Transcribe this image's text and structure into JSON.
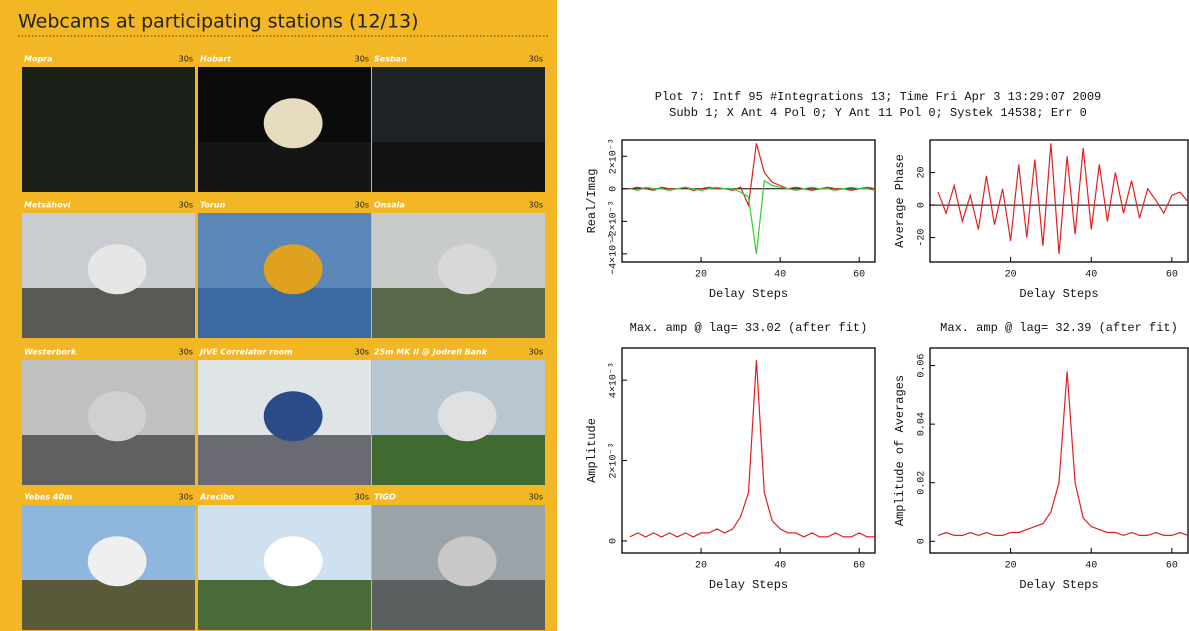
{
  "webcams": {
    "title": "Webcams at participating stations (12/13)",
    "cams": [
      {
        "name": "Mopra",
        "interval": "30s"
      },
      {
        "name": "Hobart",
        "interval": "30s"
      },
      {
        "name": "Sesban",
        "interval": "30s"
      },
      {
        "name": "Metsähovi",
        "interval": "30s"
      },
      {
        "name": "Torun",
        "interval": "30s"
      },
      {
        "name": "Onsala",
        "interval": "30s"
      },
      {
        "name": "Westerbork",
        "interval": "30s"
      },
      {
        "name": "JIVE Correlator room",
        "interval": "30s"
      },
      {
        "name": "25m MK II @ Jodrell Bank",
        "interval": "30s"
      },
      {
        "name": "Yebes 40m",
        "interval": "30s"
      },
      {
        "name": "Arecibo",
        "interval": "30s"
      },
      {
        "name": "TIGO",
        "interval": "30s"
      }
    ]
  },
  "plot": {
    "title": [
      "Plot 7: Intf 95 #Integrations 13; Time Fri Apr  3 13:29:07 2009",
      "Subb 1; X Ant 4 Pol 0; Y Ant 11 Pol 0; Systek 14538; Err 0"
    ],
    "panels": [
      {
        "ylabel": "Real/Imag",
        "xlabel": "Delay Steps",
        "xlim": [
          0,
          64
        ],
        "xticks": [
          20,
          40,
          60
        ],
        "ylim": [
          -0.0045,
          0.003
        ],
        "yticks": [
          {
            "value": 0.002,
            "label": "2×10⁻³"
          },
          0,
          {
            "value": -0.002,
            "label": "−2×10⁻³"
          },
          {
            "value": -0.004,
            "label": "−4×10⁻³"
          }
        ],
        "x": [
          2,
          4,
          6,
          8,
          10,
          12,
          14,
          16,
          18,
          20,
          22,
          24,
          26,
          28,
          30,
          32,
          34,
          36,
          38,
          40,
          42,
          44,
          46,
          48,
          50,
          52,
          54,
          56,
          58,
          60,
          62,
          64
        ],
        "series": [
          {
            "color": "#e02020",
            "values": [
              0,
              0.0001,
              0,
              -0.0001,
              0.0001,
              0,
              0,
              0.0001,
              -0.0001,
              0,
              0.0001,
              0,
              0,
              -0.0001,
              0.0001,
              -0.001,
              0.0028,
              0.001,
              0.0004,
              0.0002,
              0,
              0.0001,
              0,
              -0.0001,
              0,
              0.0001,
              0,
              0,
              -0.0001,
              0,
              0.0001,
              0
            ]
          },
          {
            "color": "#30d030",
            "values": [
              0,
              -0.0001,
              0.0001,
              0,
              0,
              -0.0001,
              0,
              0.0001,
              0,
              -0.0001,
              0,
              0.0001,
              0,
              0,
              -0.0002,
              -0.0005,
              -0.004,
              0.0005,
              0.0002,
              0.0001,
              0,
              -0.0001,
              0,
              0.0001,
              0,
              0,
              -0.0001,
              0,
              0.0001,
              0,
              0,
              -0.0001
            ]
          }
        ]
      },
      {
        "ylabel": "Average Phase",
        "xlabel": "Delay Steps",
        "xlim": [
          0,
          64
        ],
        "xticks": [
          20,
          40,
          60
        ],
        "ylim": [
          -35,
          40
        ],
        "yticks": [
          20,
          0,
          -20
        ],
        "x": [
          2,
          4,
          6,
          8,
          10,
          12,
          14,
          16,
          18,
          20,
          22,
          24,
          26,
          28,
          30,
          32,
          34,
          36,
          38,
          40,
          42,
          44,
          46,
          48,
          50,
          52,
          54,
          56,
          58,
          60,
          62,
          64
        ],
        "series": [
          {
            "color": "#e02020",
            "values": [
              8,
              -5,
              12,
              -10,
              6,
              -15,
              18,
              -12,
              10,
              -22,
              25,
              -20,
              28,
              -25,
              38,
              -30,
              30,
              -18,
              35,
              -15,
              25,
              -10,
              20,
              -5,
              15,
              -8,
              10,
              3,
              -5,
              6,
              8,
              2
            ]
          }
        ]
      },
      {
        "title": "Max. amp @ lag= 33.02 (after fit)",
        "ylabel": "Amplitude",
        "xlabel": "Delay Steps",
        "xlim": [
          0,
          64
        ],
        "xticks": [
          20,
          40,
          60
        ],
        "ylim": [
          -0.0003,
          0.0048
        ],
        "yticks": [
          0,
          {
            "value": 0.002,
            "label": "2×10⁻³"
          },
          {
            "value": 0.004,
            "label": "4×10⁻³"
          }
        ],
        "x": [
          2,
          4,
          6,
          8,
          10,
          12,
          14,
          16,
          18,
          20,
          22,
          24,
          26,
          28,
          30,
          32,
          34,
          36,
          38,
          40,
          42,
          44,
          46,
          48,
          50,
          52,
          54,
          56,
          58,
          60,
          62,
          64
        ],
        "series": [
          {
            "color": "#e02020",
            "values": [
              0.0001,
              0.0002,
              0.0001,
              0.0002,
              0.0001,
              0.0002,
              0.0001,
              0.0002,
              0.0001,
              0.0002,
              0.0002,
              0.0003,
              0.0002,
              0.0003,
              0.0006,
              0.0012,
              0.0045,
              0.0012,
              0.0005,
              0.0003,
              0.0002,
              0.0002,
              0.0001,
              0.0002,
              0.0001,
              0.0001,
              0.0002,
              0.0001,
              0.0001,
              0.0002,
              0.0001,
              0.0001
            ]
          }
        ]
      },
      {
        "title": "Max. amp @ lag= 32.39 (after fit)",
        "ylabel": "Amplitude of Averages",
        "xlabel": "Delay Steps",
        "xlim": [
          0,
          64
        ],
        "xticks": [
          20,
          40,
          60
        ],
        "ylim": [
          -0.004,
          0.066
        ],
        "yticks": [
          0,
          0.02,
          0.04,
          0.06
        ],
        "x": [
          2,
          4,
          6,
          8,
          10,
          12,
          14,
          16,
          18,
          20,
          22,
          24,
          26,
          28,
          30,
          32,
          34,
          36,
          38,
          40,
          42,
          44,
          46,
          48,
          50,
          52,
          54,
          56,
          58,
          60,
          62,
          64
        ],
        "series": [
          {
            "color": "#e02020",
            "values": [
              0.002,
              0.003,
              0.002,
              0.002,
              0.003,
              0.002,
              0.003,
              0.002,
              0.002,
              0.003,
              0.003,
              0.004,
              0.005,
              0.006,
              0.01,
              0.02,
              0.058,
              0.02,
              0.008,
              0.005,
              0.004,
              0.003,
              0.003,
              0.002,
              0.003,
              0.002,
              0.002,
              0.003,
              0.002,
              0.002,
              0.003,
              0.002
            ]
          }
        ]
      }
    ]
  }
}
